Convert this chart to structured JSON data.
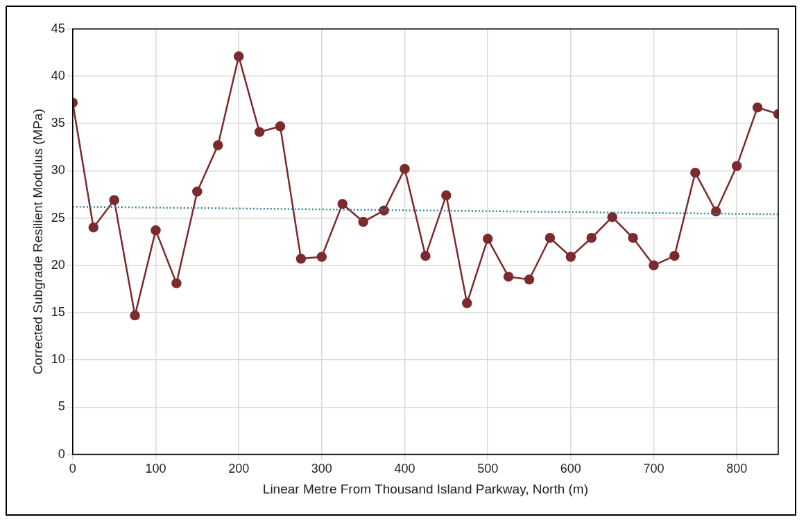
{
  "chart_data": {
    "type": "line",
    "xlabel": "Linear Metre From Thousand Island Parkway, North (m)",
    "ylabel": "Corrected Subgrade Resilient Modulus (MPa)",
    "x": [
      0,
      25,
      50,
      75,
      100,
      125,
      150,
      175,
      200,
      225,
      250,
      275,
      300,
      325,
      350,
      375,
      400,
      425,
      450,
      475,
      500,
      525,
      550,
      575,
      600,
      625,
      650,
      675,
      700,
      725,
      750,
      775,
      800,
      825,
      850
    ],
    "series": [
      {
        "color": "#7b2a2e",
        "marker": "circle",
        "line_style": "solid",
        "values": [
          37.2,
          24.0,
          26.9,
          14.7,
          23.7,
          18.1,
          27.8,
          32.7,
          42.1,
          34.1,
          34.7,
          20.7,
          20.9,
          26.5,
          24.6,
          25.8,
          30.2,
          21.0,
          27.4,
          16.0,
          22.8,
          18.8,
          18.5,
          22.9,
          20.9,
          22.9,
          25.1,
          22.9,
          20.0,
          21.0,
          29.8,
          25.7,
          30.5,
          36.7,
          36.0
        ]
      },
      {
        "type": "line",
        "color": "#31859c",
        "marker": "none",
        "line_style": "dotted",
        "x": [
          0,
          850
        ],
        "values": [
          26.2,
          25.4
        ]
      }
    ],
    "xlim": [
      0,
      850
    ],
    "xticks": [
      0,
      100,
      200,
      300,
      400,
      500,
      600,
      700,
      800
    ],
    "ylim": [
      0,
      45
    ],
    "yticks": [
      0,
      5,
      10,
      15,
      20,
      25,
      30,
      35,
      40,
      45
    ],
    "grid": true,
    "legend": false
  }
}
